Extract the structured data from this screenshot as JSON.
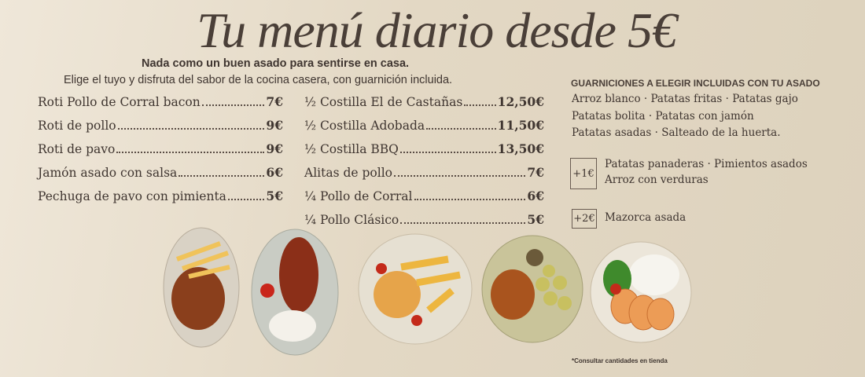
{
  "header": {
    "title": "Tu menú diario desde 5€",
    "tagline": "Nada como un buen asado para sentirse en casa.",
    "subtitle": "Elige el tuyo y disfruta del sabor de la cocina casera, con guarnición incluida."
  },
  "menu": {
    "left": [
      {
        "name": "Roti Pollo de Corral bacon",
        "price": "7€"
      },
      {
        "name": "Roti de pollo",
        "price": "9€"
      },
      {
        "name": "Roti de pavo",
        "price": "9€"
      },
      {
        "name": "Jamón asado con salsa",
        "price": "6€"
      },
      {
        "name": "Pechuga de pavo con pimienta",
        "price": "5€"
      }
    ],
    "right": [
      {
        "name": "½ Costilla El de Castañas",
        "price": "12,50€"
      },
      {
        "name": "½ Costilla Adobada",
        "price": "11,50€"
      },
      {
        "name": "½ Costilla BBQ",
        "price": "13,50€"
      },
      {
        "name": "Alitas de pollo",
        "price": "7€"
      },
      {
        "name": "¼ Pollo de Corral",
        "price": "6€"
      },
      {
        "name": "¼ Pollo Clásico",
        "price": "5€"
      }
    ]
  },
  "garnish": {
    "heading": "GUARNICIONES A ELEGIR INCLUIDAS CON TU ASADO",
    "lines": [
      "Arroz blanco · Patatas fritas · Patatas gajo",
      "Patatas bolita · Patatas con jamón",
      "Patatas asadas · Salteado de la huerta."
    ],
    "extras": [
      {
        "price": "+1€",
        "lines": [
          "Patatas panaderas · Pimientos asados",
          "Arroz con verduras"
        ]
      },
      {
        "price": "+2€",
        "lines": [
          "Mazorca asada"
        ]
      }
    ]
  },
  "footnote": "*Consultar cantidades en tienda"
}
